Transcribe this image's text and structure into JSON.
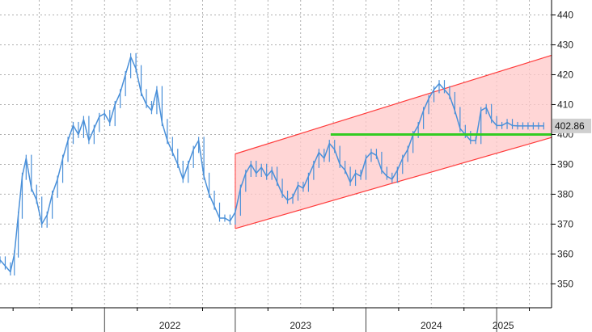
{
  "chart_data": {
    "type": "line",
    "title": "",
    "xlabel": "",
    "ylabel": "",
    "ylim": [
      342,
      445
    ],
    "xlim": [
      2021.2,
      2025.42
    ],
    "y_ticks": [
      350,
      360,
      370,
      380,
      390,
      400,
      410,
      420,
      430,
      440
    ],
    "x_tick_labels": [
      {
        "label": "2022",
        "year": 2022
      },
      {
        "label": "2023",
        "year": 2023
      },
      {
        "label": "2024",
        "year": 2024
      },
      {
        "label": "2025",
        "year": 2025
      }
    ],
    "grid": true,
    "last_value_label": "402.86",
    "colors": {
      "price": "#4a90d9",
      "channel_fill": "#ffc8c8",
      "channel_line": "#ff3b3b",
      "support": "#33cc22",
      "grid": "#b0b0b0",
      "label_box": "#cfcfcf"
    },
    "series": [
      {
        "type": "line",
        "x": [
          2021.2,
          2021.24,
          2021.28,
          2021.31,
          2021.34,
          2021.37,
          2021.4,
          2021.44,
          2021.48,
          2021.52,
          2021.56,
          2021.6,
          2021.64,
          2021.68,
          2021.72,
          2021.76,
          2021.8,
          2021.84,
          2021.88,
          2021.92,
          2021.96,
          2022.0,
          2022.04,
          2022.08,
          2022.12,
          2022.16,
          2022.2,
          2022.24,
          2022.28,
          2022.32,
          2022.36,
          2022.4,
          2022.44,
          2022.48,
          2022.52,
          2022.56,
          2022.6,
          2022.64,
          2022.68,
          2022.72,
          2022.76,
          2022.8,
          2022.84,
          2022.88,
          2022.92,
          2022.96,
          2023.0,
          2023.04,
          2023.08,
          2023.12,
          2023.16,
          2023.2,
          2023.24,
          2023.28,
          2023.32,
          2023.36,
          2023.4,
          2023.44,
          2023.48,
          2023.52,
          2023.56,
          2023.6,
          2023.64,
          2023.68,
          2023.72,
          2023.76,
          2023.8,
          2023.84,
          2023.88,
          2023.92,
          2023.96,
          2024.0,
          2024.04,
          2024.08,
          2024.12,
          2024.16,
          2024.2,
          2024.24,
          2024.28,
          2024.32,
          2024.36,
          2024.4,
          2024.44,
          2024.48,
          2024.52,
          2024.56,
          2024.6,
          2024.64,
          2024.68,
          2024.72,
          2024.76,
          2024.8,
          2024.84,
          2024.88,
          2024.92,
          2024.96,
          2025.0,
          2025.04,
          2025.08,
          2025.12,
          2025.16,
          2025.2,
          2025.24,
          2025.28,
          2025.32,
          2025.36
        ],
        "y": [
          358,
          356,
          354,
          360,
          373,
          386,
          392,
          382,
          378,
          370,
          373,
          380,
          385,
          392,
          398,
          403,
          400,
          405,
          398,
          402,
          406,
          407,
          404,
          410,
          414,
          420,
          426,
          422,
          414,
          410,
          408,
          415,
          404,
          398,
          394,
          390,
          385,
          390,
          395,
          398,
          386,
          380,
          376,
          372,
          372,
          371,
          374,
          382,
          387,
          390,
          387,
          389,
          386,
          388,
          384,
          380,
          378,
          379,
          383,
          382,
          386,
          390,
          394,
          392,
          397,
          395,
          390,
          388,
          384,
          387,
          386,
          392,
          394,
          393,
          388,
          386,
          385,
          388,
          392,
          395,
          400,
          403,
          408,
          412,
          415,
          417,
          415,
          413,
          408,
          402,
          400,
          398,
          398,
          408,
          409,
          405,
          403,
          403,
          404,
          403,
          402.86,
          402.86,
          402.86,
          402.86,
          402.86,
          402.86
        ]
      }
    ],
    "annotations": [
      {
        "type": "channel",
        "x0": 2023.0,
        "x1": 2025.42,
        "lower": [
          368.5,
          399.0
        ],
        "upper": [
          393.5,
          426.5
        ]
      },
      {
        "type": "support",
        "x0": 2023.73,
        "x1": 2025.42,
        "y": 400
      }
    ]
  }
}
